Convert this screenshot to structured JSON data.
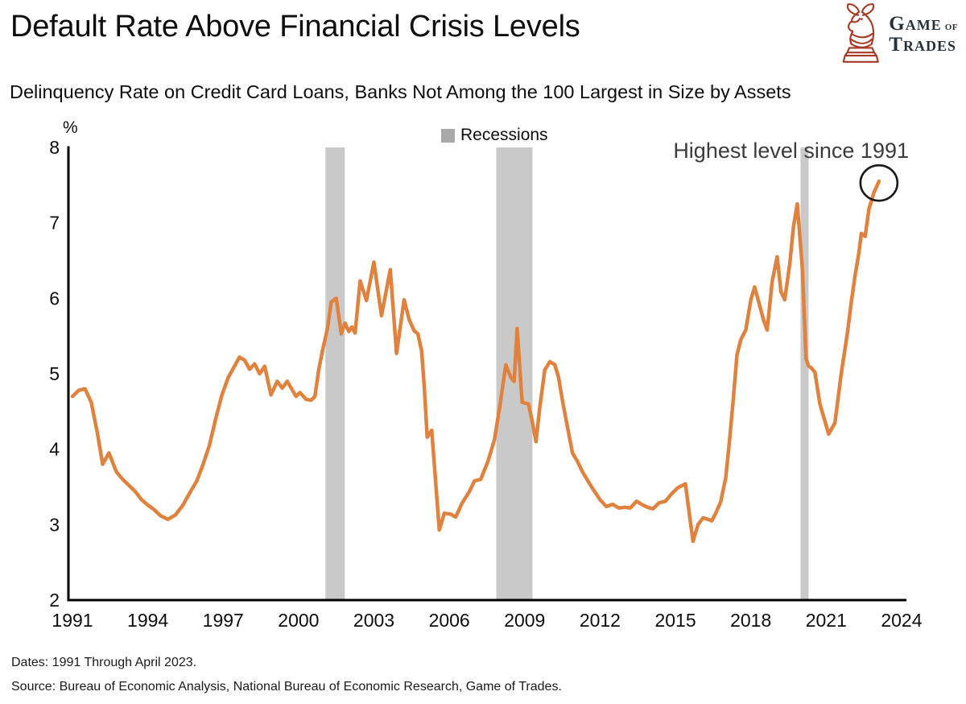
{
  "header": {
    "title": "Default Rate Above Financial Crisis Levels",
    "subtitle": "Delinquency Rate on Credit Card Loans, Banks Not Among the 100 Largest in Size by Assets",
    "logo": {
      "g": "G",
      "ame": "AME",
      "of": "OF",
      "t": "T",
      "rades": "RADES"
    }
  },
  "chart_data": {
    "type": "line",
    "title": "Default Rate Above Financial Crisis Levels",
    "subtitle": "Delinquency Rate on Credit Card Loans, Banks Not Among the 100 Largest in Size by Assets",
    "y_unit": "%",
    "ylabel": "%",
    "xlabel": "",
    "ylim": [
      2,
      8
    ],
    "xlim": [
      1991,
      2024.2
    ],
    "y_ticks": [
      2,
      3,
      4,
      5,
      6,
      7,
      8
    ],
    "x_ticks": [
      1991,
      1994,
      1997,
      2000,
      2003,
      2006,
      2009,
      2012,
      2015,
      2018,
      2021,
      2024
    ],
    "grid": false,
    "legend_position": "top-center",
    "legend": [
      {
        "label": "Recessions",
        "swatch_color": "#A8A8A8",
        "band_color": "#C9C9C9"
      }
    ],
    "line_color": "#E0823E",
    "annotation": {
      "text": "Highest level since 1991",
      "circle_at": {
        "x": 2023.1,
        "y": 7.55
      }
    },
    "recessions": [
      [
        2001.07,
        2001.84
      ],
      [
        2007.87,
        2009.31
      ],
      [
        2019.98,
        2020.3
      ]
    ],
    "series": [
      {
        "name": "Delinquency Rate on Credit Card Loans, Banks Not Among the 100 Largest in Size by Assets",
        "unit": "percent",
        "points": [
          [
            1991.0,
            4.7
          ],
          [
            1991.25,
            4.78
          ],
          [
            1991.5,
            4.8
          ],
          [
            1991.75,
            4.62
          ],
          [
            1992.0,
            4.2
          ],
          [
            1992.2,
            3.8
          ],
          [
            1992.45,
            3.95
          ],
          [
            1992.75,
            3.7
          ],
          [
            1993.0,
            3.6
          ],
          [
            1993.25,
            3.52
          ],
          [
            1993.5,
            3.44
          ],
          [
            1993.75,
            3.33
          ],
          [
            1994.0,
            3.26
          ],
          [
            1994.25,
            3.2
          ],
          [
            1994.5,
            3.12
          ],
          [
            1994.8,
            3.07
          ],
          [
            1995.1,
            3.13
          ],
          [
            1995.4,
            3.26
          ],
          [
            1995.7,
            3.44
          ],
          [
            1995.95,
            3.58
          ],
          [
            1996.2,
            3.8
          ],
          [
            1996.45,
            4.05
          ],
          [
            1996.7,
            4.4
          ],
          [
            1996.95,
            4.72
          ],
          [
            1997.2,
            4.95
          ],
          [
            1997.45,
            5.1
          ],
          [
            1997.65,
            5.22
          ],
          [
            1997.85,
            5.18
          ],
          [
            1998.05,
            5.06
          ],
          [
            1998.25,
            5.13
          ],
          [
            1998.45,
            5.0
          ],
          [
            1998.65,
            5.1
          ],
          [
            1998.9,
            4.72
          ],
          [
            1999.15,
            4.9
          ],
          [
            1999.35,
            4.81
          ],
          [
            1999.55,
            4.9
          ],
          [
            1999.9,
            4.7
          ],
          [
            2000.05,
            4.75
          ],
          [
            2000.3,
            4.66
          ],
          [
            2000.5,
            4.65
          ],
          [
            2000.65,
            4.7
          ],
          [
            2000.8,
            5.05
          ],
          [
            2000.95,
            5.3
          ],
          [
            2001.15,
            5.6
          ],
          [
            2001.3,
            5.95
          ],
          [
            2001.5,
            6.0
          ],
          [
            2001.7,
            5.53
          ],
          [
            2001.85,
            5.67
          ],
          [
            2002.0,
            5.56
          ],
          [
            2002.12,
            5.62
          ],
          [
            2002.25,
            5.54
          ],
          [
            2002.45,
            6.23
          ],
          [
            2002.7,
            5.97
          ],
          [
            2003.0,
            6.48
          ],
          [
            2003.3,
            5.77
          ],
          [
            2003.65,
            6.38
          ],
          [
            2003.9,
            5.27
          ],
          [
            2004.2,
            5.98
          ],
          [
            2004.4,
            5.72
          ],
          [
            2004.6,
            5.57
          ],
          [
            2004.75,
            5.53
          ],
          [
            2004.9,
            5.3
          ],
          [
            2005.0,
            4.85
          ],
          [
            2005.12,
            4.16
          ],
          [
            2005.3,
            4.25
          ],
          [
            2005.6,
            2.93
          ],
          [
            2005.8,
            3.15
          ],
          [
            2006.05,
            3.14
          ],
          [
            2006.25,
            3.1
          ],
          [
            2006.5,
            3.28
          ],
          [
            2006.8,
            3.44
          ],
          [
            2007.0,
            3.58
          ],
          [
            2007.25,
            3.6
          ],
          [
            2007.55,
            3.85
          ],
          [
            2007.8,
            4.13
          ],
          [
            2008.0,
            4.55
          ],
          [
            2008.25,
            5.12
          ],
          [
            2008.45,
            4.95
          ],
          [
            2008.58,
            4.9
          ],
          [
            2008.7,
            5.6
          ],
          [
            2008.9,
            4.62
          ],
          [
            2009.15,
            4.6
          ],
          [
            2009.3,
            4.37
          ],
          [
            2009.45,
            4.1
          ],
          [
            2009.6,
            4.55
          ],
          [
            2009.8,
            5.05
          ],
          [
            2010.0,
            5.16
          ],
          [
            2010.2,
            5.12
          ],
          [
            2010.35,
            4.95
          ],
          [
            2010.5,
            4.65
          ],
          [
            2010.7,
            4.3
          ],
          [
            2010.9,
            3.95
          ],
          [
            2011.1,
            3.84
          ],
          [
            2011.3,
            3.7
          ],
          [
            2011.55,
            3.56
          ],
          [
            2011.8,
            3.43
          ],
          [
            2012.0,
            3.33
          ],
          [
            2012.25,
            3.24
          ],
          [
            2012.5,
            3.27
          ],
          [
            2012.75,
            3.22
          ],
          [
            2013.0,
            3.23
          ],
          [
            2013.2,
            3.22
          ],
          [
            2013.45,
            3.31
          ],
          [
            2013.7,
            3.26
          ],
          [
            2013.9,
            3.23
          ],
          [
            2014.1,
            3.21
          ],
          [
            2014.35,
            3.29
          ],
          [
            2014.6,
            3.31
          ],
          [
            2014.85,
            3.41
          ],
          [
            2015.1,
            3.49
          ],
          [
            2015.4,
            3.54
          ],
          [
            2015.55,
            3.15
          ],
          [
            2015.7,
            2.78
          ],
          [
            2015.9,
            3.0
          ],
          [
            2016.1,
            3.09
          ],
          [
            2016.3,
            3.07
          ],
          [
            2016.45,
            3.05
          ],
          [
            2016.6,
            3.15
          ],
          [
            2016.8,
            3.3
          ],
          [
            2017.0,
            3.62
          ],
          [
            2017.15,
            4.1
          ],
          [
            2017.3,
            4.65
          ],
          [
            2017.45,
            5.25
          ],
          [
            2017.6,
            5.45
          ],
          [
            2017.8,
            5.58
          ],
          [
            2018.0,
            5.98
          ],
          [
            2018.15,
            6.15
          ],
          [
            2018.3,
            5.97
          ],
          [
            2018.5,
            5.72
          ],
          [
            2018.65,
            5.58
          ],
          [
            2018.85,
            6.22
          ],
          [
            2019.05,
            6.55
          ],
          [
            2019.2,
            6.09
          ],
          [
            2019.35,
            5.98
          ],
          [
            2019.55,
            6.45
          ],
          [
            2019.7,
            6.95
          ],
          [
            2019.85,
            7.25
          ],
          [
            2020.05,
            6.4
          ],
          [
            2020.2,
            5.2
          ],
          [
            2020.3,
            5.1
          ],
          [
            2020.4,
            5.08
          ],
          [
            2020.55,
            5.02
          ],
          [
            2020.75,
            4.6
          ],
          [
            2021.1,
            4.2
          ],
          [
            2021.35,
            4.35
          ],
          [
            2021.6,
            5.0
          ],
          [
            2021.85,
            5.55
          ],
          [
            2022.0,
            5.95
          ],
          [
            2022.15,
            6.3
          ],
          [
            2022.3,
            6.6
          ],
          [
            2022.4,
            6.86
          ],
          [
            2022.55,
            6.82
          ],
          [
            2022.7,
            7.18
          ],
          [
            2022.9,
            7.4
          ],
          [
            2023.1,
            7.55
          ]
        ]
      }
    ]
  },
  "footer": {
    "dates": "Dates: 1991 Through April 2023.",
    "source": "Source: Bureau of Economic Analysis, National Bureau of Economic Research, Game of Trades."
  }
}
